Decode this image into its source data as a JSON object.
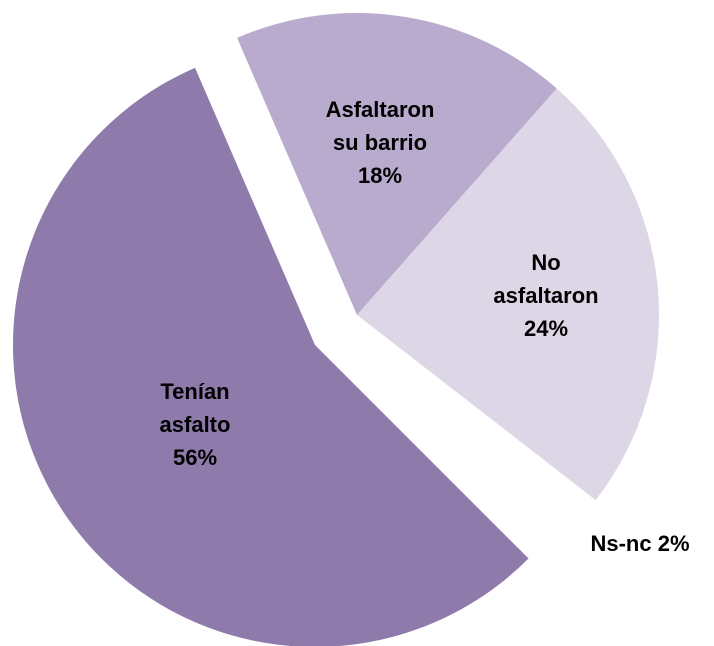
{
  "chart_data": {
    "type": "pie",
    "categories": [
      "Asfaltaron su barrio",
      "No asfaltaron",
      "Ns-nc",
      "Tenían asfalto"
    ],
    "values": [
      18,
      24,
      2,
      56
    ],
    "value_labels": [
      "18%",
      "24%",
      "2%",
      "56%"
    ],
    "colors": [
      "#b9abcd",
      "#ddd6e6",
      "#ffffff",
      "#8e7aab"
    ]
  }
}
